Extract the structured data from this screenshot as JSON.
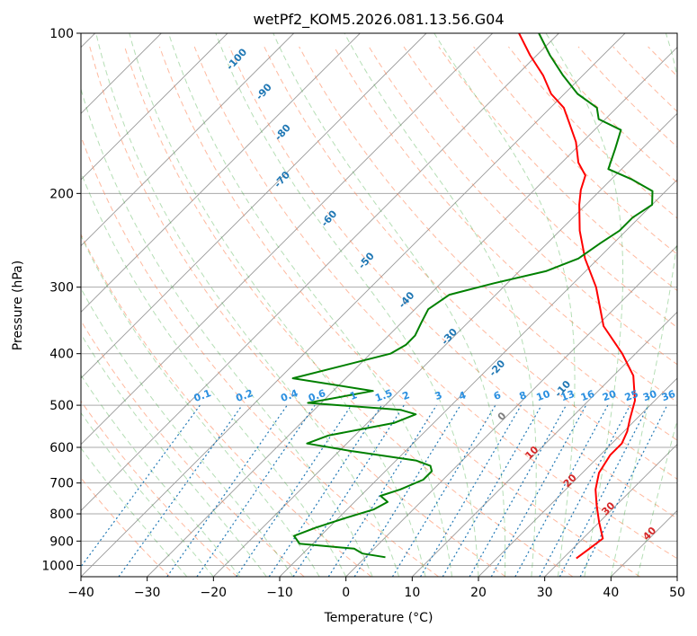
{
  "chart_data": {
    "type": "line",
    "title": "wetPf2_KOM5.2026.081.13.56.G04",
    "xlabel": "Temperature (°C)",
    "ylabel": "Pressure (hPa)",
    "xlim": [
      -40,
      50
    ],
    "ylim": [
      1050,
      100
    ],
    "x_ticks": [
      "−40",
      "−30",
      "−20",
      "−10",
      "0",
      "10",
      "20",
      "30",
      "40",
      "50"
    ],
    "y_ticks": [
      "100",
      "200",
      "300",
      "400",
      "500",
      "600",
      "700",
      "800",
      "900",
      "1000"
    ],
    "y_tick_values": [
      100,
      200,
      300,
      400,
      500,
      600,
      700,
      800,
      900,
      1000
    ],
    "y_scale": "log",
    "skew": true,
    "grid": true,
    "series": [
      {
        "color": "#ff0000",
        "points": [
          [
            32,
            970
          ],
          [
            32.5,
            930
          ],
          [
            33,
            890
          ],
          [
            30,
            830
          ],
          [
            27,
            770
          ],
          [
            24.5,
            720
          ],
          [
            22.5,
            670
          ],
          [
            21.5,
            620
          ],
          [
            21.5,
            590
          ],
          [
            20.5,
            560
          ],
          [
            19,
            530
          ],
          [
            17,
            490
          ],
          [
            13,
            440
          ],
          [
            8,
            400
          ],
          [
            1,
            355
          ],
          [
            -6,
            300
          ],
          [
            -12,
            265
          ],
          [
            -17,
            235
          ],
          [
            -21,
            210
          ],
          [
            -23,
            197
          ],
          [
            -24.5,
            185
          ],
          [
            -27.5,
            175
          ],
          [
            -31,
            160
          ],
          [
            -35,
            147
          ],
          [
            -38,
            138
          ],
          [
            -42,
            130
          ],
          [
            -46,
            120
          ],
          [
            -51,
            110
          ],
          [
            -56,
            100
          ]
        ]
      },
      {
        "color": "#008000",
        "points": [
          [
            3,
            965
          ],
          [
            -1,
            950
          ],
          [
            -3,
            930
          ],
          [
            -12,
            910
          ],
          [
            -14,
            880
          ],
          [
            -12,
            850
          ],
          [
            -9,
            815
          ],
          [
            -6,
            785
          ],
          [
            -5,
            760
          ],
          [
            -7,
            740
          ],
          [
            -5,
            720
          ],
          [
            -3,
            690
          ],
          [
            -3,
            665
          ],
          [
            -4,
            650
          ],
          [
            -7,
            635
          ],
          [
            -18,
            610
          ],
          [
            -26,
            590
          ],
          [
            -24,
            570
          ],
          [
            -16,
            540
          ],
          [
            -14,
            520
          ],
          [
            -17,
            510
          ],
          [
            -32,
            495
          ],
          [
            -24,
            470
          ],
          [
            -38,
            445
          ],
          [
            -32,
            420
          ],
          [
            -27,
            400
          ],
          [
            -26,
            385
          ],
          [
            -26,
            370
          ],
          [
            -27,
            350
          ],
          [
            -28,
            330
          ],
          [
            -27,
            310
          ],
          [
            -22,
            295
          ],
          [
            -16,
            280
          ],
          [
            -13,
            265
          ],
          [
            -12,
            248
          ],
          [
            -11,
            235
          ],
          [
            -11,
            222
          ],
          [
            -10,
            210
          ],
          [
            -12,
            198
          ],
          [
            -17,
            188
          ],
          [
            -22,
            180
          ],
          [
            -24,
            165
          ],
          [
            -26,
            152
          ],
          [
            -31,
            145
          ],
          [
            -33,
            138
          ],
          [
            -38,
            130
          ],
          [
            -43,
            120
          ],
          [
            -48,
            110
          ],
          [
            -53,
            100
          ]
        ]
      }
    ],
    "isotherm_label_color": "#d62728",
    "isotherm_labels": [
      {
        "text": "0",
        "T": 0,
        "p": 530,
        "color": "#7f7f7f"
      },
      {
        "text": "10",
        "T": 10,
        "p": 620
      },
      {
        "text": "20",
        "T": 20,
        "p": 700
      },
      {
        "text": "30",
        "T": 30,
        "p": 790
      },
      {
        "text": "40",
        "T": 40,
        "p": 880
      }
    ],
    "dry_adiabat_label_color": "#1f77b4",
    "dry_adiabat_labels": [
      {
        "text": "-100",
        "T": -94,
        "p": 113
      },
      {
        "text": "-90",
        "T": -85,
        "p": 130
      },
      {
        "text": "-80",
        "T": -76,
        "p": 155
      },
      {
        "text": "-70",
        "T": -69,
        "p": 190
      },
      {
        "text": "-60",
        "T": -56,
        "p": 225
      },
      {
        "text": "-50",
        "T": -44,
        "p": 270
      },
      {
        "text": "-40",
        "T": -32,
        "p": 320
      },
      {
        "text": "-30",
        "T": -20,
        "p": 375
      },
      {
        "text": "-20",
        "T": -8,
        "p": 430
      },
      {
        "text": "-10",
        "T": 5,
        "p": 470
      }
    ],
    "mixing_ratio_label_color": "#2a8fe0",
    "mixing_ratio_labels": [
      "0.1",
      "0.2",
      "0.4",
      "0.6",
      "1",
      "1.5",
      "2",
      "3",
      "4",
      "6",
      "8",
      "10",
      "13",
      "16",
      "20",
      "25",
      "30",
      "36"
    ],
    "background_colors": {
      "isotherm": "#999999",
      "isobar": "#aaaaaa",
      "dry_adiabat": "#ff7f50",
      "moist_adiabat": "#2ca02c",
      "mixing_ratio": "#1f77b4"
    }
  }
}
